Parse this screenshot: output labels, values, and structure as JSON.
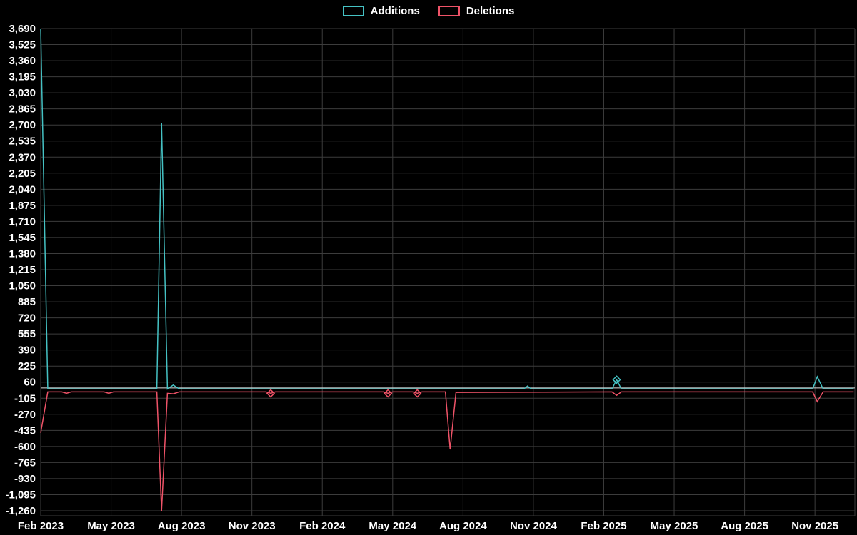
{
  "chart_data": {
    "type": "line",
    "title": "",
    "legend_position": "top-center",
    "grid": true,
    "x_encoding": "months since Feb 2023",
    "ylim": [
      -1260,
      3690
    ],
    "xlim": [
      0,
      34.7
    ],
    "y_tick_values": [
      3690,
      3525,
      3360,
      3195,
      3030,
      2865,
      2700,
      2535,
      2370,
      2205,
      2040,
      1875,
      1710,
      1545,
      1380,
      1215,
      1050,
      885,
      720,
      555,
      390,
      225,
      60,
      -105,
      -270,
      -435,
      -600,
      -765,
      -930,
      -1095,
      -1260
    ],
    "y_tick_labels": [
      "3,690",
      "3,525",
      "3,360",
      "3,195",
      "3,030",
      "2,865",
      "2,700",
      "2,535",
      "2,370",
      "2,205",
      "2,040",
      "1,875",
      "1,710",
      "1,545",
      "1,380",
      "1,215",
      "1,050",
      "885",
      "720",
      "555",
      "390",
      "225",
      "60",
      "-105",
      "-270",
      "-435",
      "-600",
      "-765",
      "-930",
      "-1,095",
      "-1,260"
    ],
    "x_tick_months": [
      0,
      3,
      6,
      9,
      12,
      15,
      18,
      21,
      24,
      27,
      30,
      33
    ],
    "x_tick_labels": [
      "Feb 2023",
      "May 2023",
      "Aug 2023",
      "Nov 2023",
      "Feb 2024",
      "May 2024",
      "Aug 2024",
      "Nov 2024",
      "Feb 2025",
      "May 2025",
      "Aug 2025",
      "Nov 2025"
    ],
    "series": [
      {
        "name": "Additions",
        "color": "#45c2c4",
        "points": [
          [
            0,
            3690
          ],
          [
            0.3,
            -10
          ],
          [
            1.0,
            -10
          ],
          [
            4.95,
            -10
          ],
          [
            5.15,
            2720
          ],
          [
            5.4,
            -10
          ],
          [
            5.65,
            30
          ],
          [
            5.9,
            -10
          ],
          [
            20.6,
            -10
          ],
          [
            20.75,
            20
          ],
          [
            20.9,
            -10
          ],
          [
            24.35,
            -10
          ],
          [
            24.55,
            85
          ],
          [
            24.75,
            -10
          ],
          [
            32.9,
            -10
          ],
          [
            33.1,
            115
          ],
          [
            33.35,
            -10
          ],
          [
            34.65,
            -10
          ]
        ]
      },
      {
        "name": "Deletions",
        "color": "#ef5368",
        "points": [
          [
            0,
            -460
          ],
          [
            0.3,
            -40
          ],
          [
            0.9,
            -40
          ],
          [
            1.1,
            -55
          ],
          [
            1.3,
            -40
          ],
          [
            2.7,
            -40
          ],
          [
            2.9,
            -55
          ],
          [
            3.1,
            -40
          ],
          [
            4.95,
            -40
          ],
          [
            5.15,
            -1260
          ],
          [
            5.4,
            -55
          ],
          [
            5.65,
            -60
          ],
          [
            5.9,
            -40
          ],
          [
            9.6,
            -40
          ],
          [
            9.8,
            -55
          ],
          [
            10.0,
            -40
          ],
          [
            14.6,
            -40
          ],
          [
            14.8,
            -55
          ],
          [
            15.0,
            -40
          ],
          [
            15.85,
            -40
          ],
          [
            16.05,
            -55
          ],
          [
            16.25,
            -40
          ],
          [
            17.25,
            -40
          ],
          [
            17.45,
            -630
          ],
          [
            17.7,
            -45
          ],
          [
            24.35,
            -40
          ],
          [
            24.55,
            -75
          ],
          [
            24.75,
            -40
          ],
          [
            32.9,
            -40
          ],
          [
            33.1,
            -140
          ],
          [
            33.35,
            -40
          ],
          [
            34.65,
            -40
          ]
        ]
      }
    ],
    "markers": [
      {
        "series": "Deletions",
        "m": 9.8,
        "v": -55
      },
      {
        "series": "Deletions",
        "m": 14.8,
        "v": -55
      },
      {
        "series": "Deletions",
        "m": 16.05,
        "v": -55
      },
      {
        "series": "Additions",
        "m": 24.55,
        "v": 85
      }
    ],
    "colors": {
      "background": "#000000",
      "grid": "#3c3c3c",
      "text": "#ffffff",
      "zero_line": "#dddddd"
    }
  }
}
